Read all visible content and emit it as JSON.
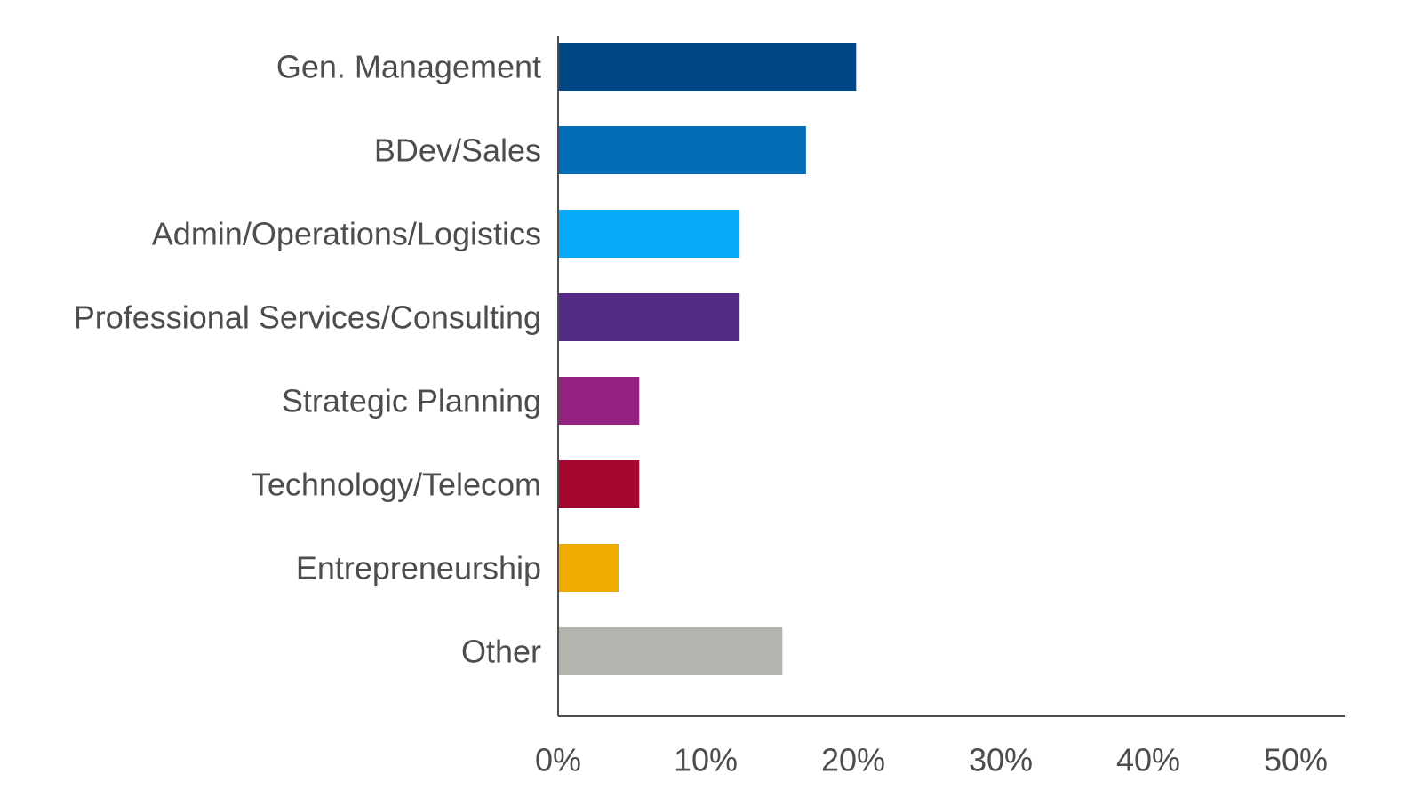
{
  "chart_data": {
    "type": "bar",
    "orientation": "horizontal",
    "categories": [
      "Gen. Management",
      "BDev/Sales",
      "Admin/Operations/Logistics",
      "Professional Services/Consulting",
      "Strategic Planning",
      "Technology/Telecom",
      "Entrepreneurship",
      "Other"
    ],
    "values": [
      20.2,
      16.8,
      12.3,
      12.3,
      5.5,
      5.5,
      4.1,
      15.2
    ],
    "colors": [
      "#004785",
      "#026cb6",
      "#09a9f9",
      "#532a85",
      "#952181",
      "#a5062f",
      "#f0ab00",
      "#b1b5ae"
    ],
    "xlim": [
      0,
      53
    ],
    "xticks": [
      0,
      10,
      20,
      30,
      40,
      50
    ],
    "xtick_labels": [
      "0%",
      "10%",
      "20%",
      "30%",
      "40%",
      "50%"
    ],
    "grid": false,
    "title": "",
    "xlabel": "",
    "ylabel": ""
  }
}
